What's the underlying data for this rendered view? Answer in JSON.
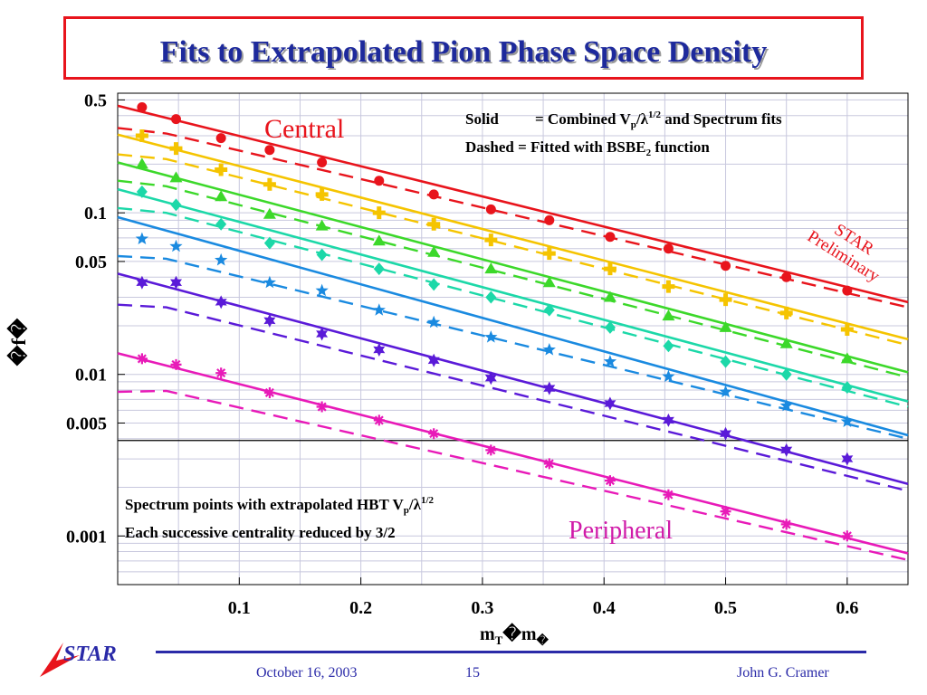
{
  "slide": {
    "title": "Fits to Extrapolated Pion Phase Space Density",
    "footer": {
      "date": "October 16, 2003",
      "page": "15",
      "author": "John G. Cramer",
      "logo_text": "STAR"
    }
  },
  "chart_data": {
    "type": "scatter",
    "xlabel": "m T �m �",
    "xlabel_main": "m",
    "xlabel_sub": "T",
    "xlabel_mid": "�m",
    "xlabel_end": "�",
    "ylabel": "�f�",
    "xlim": [
      0.0,
      0.65
    ],
    "ylim": [
      0.0005,
      0.55
    ],
    "yscale": "log",
    "grid": true,
    "x_ticks": [
      {
        "v": 0.1,
        "label": "0.1"
      },
      {
        "v": 0.2,
        "label": "0.2"
      },
      {
        "v": 0.3,
        "label": "0.3"
      },
      {
        "v": 0.4,
        "label": "0.4"
      },
      {
        "v": 0.5,
        "label": "0.5"
      },
      {
        "v": 0.6,
        "label": "0.6"
      }
    ],
    "y_ticks": [
      {
        "v": 0.5,
        "label": "0.5"
      },
      {
        "v": 0.1,
        "label": "0.1"
      },
      {
        "v": 0.05,
        "label": "0.05"
      },
      {
        "v": 0.01,
        "label": "0.01"
      },
      {
        "v": 0.005,
        "label": "0.005"
      },
      {
        "v": 0.001,
        "label": "0.001"
      }
    ],
    "separator_y": 0.0039,
    "annotations": {
      "central": "Central",
      "peripheral": "Peripheral",
      "solid_prefix": "Solid",
      "solid_mid": "= Combined V",
      "solid_sub": "p",
      "solid_lambda": "/λ",
      "solid_sup": "1/2",
      "solid_suffix": " and Spectrum fits",
      "dashed_text": "Dashed = Fitted with BSBE",
      "dashed_sub": "2",
      "dashed_suffix": " function",
      "star_line1": "STAR",
      "star_line2": "Preliminary",
      "spectrum_line1_prefix": "Spectrum points with extrapolated HBT V",
      "spectrum_line1_sub": "p",
      "spectrum_line1_mid": "/λ",
      "spectrum_line1_sup": "1/2",
      "spectrum_line2": "Each successive centrality reduced by 3/2"
    },
    "series": [
      {
        "color": "#e8141c",
        "marker": "circle",
        "x": [
          0.02,
          0.048,
          0.085,
          0.125,
          0.168,
          0.215,
          0.26,
          0.307,
          0.355,
          0.405,
          0.453,
          0.5,
          0.55,
          0.6
        ],
        "y": [
          0.45,
          0.38,
          0.29,
          0.245,
          0.205,
          0.158,
          0.13,
          0.105,
          0.09,
          0.071,
          0.06,
          0.047,
          0.04,
          0.033
        ],
        "solid": [
          [
            0.0,
            0.46
          ],
          [
            0.65,
            0.028
          ]
        ],
        "dashed": [
          [
            0.0,
            0.335
          ],
          [
            0.04,
            0.31
          ],
          [
            0.65,
            0.026
          ]
        ]
      },
      {
        "color": "#f5c400",
        "marker": "plus",
        "x": [
          0.02,
          0.048,
          0.085,
          0.125,
          0.168,
          0.215,
          0.26,
          0.307,
          0.355,
          0.405,
          0.453,
          0.5,
          0.55,
          0.6
        ],
        "y": [
          0.3,
          0.25,
          0.185,
          0.15,
          0.13,
          0.1,
          0.085,
          0.068,
          0.056,
          0.045,
          0.035,
          0.029,
          0.024,
          0.019
        ],
        "solid": [
          [
            0.0,
            0.305
          ],
          [
            0.65,
            0.0165
          ]
        ],
        "dashed": [
          [
            0.0,
            0.23
          ],
          [
            0.04,
            0.215
          ],
          [
            0.65,
            0.0152
          ]
        ]
      },
      {
        "color": "#3cd82a",
        "marker": "triangle",
        "x": [
          0.02,
          0.048,
          0.085,
          0.125,
          0.168,
          0.215,
          0.26,
          0.307,
          0.355,
          0.405,
          0.453,
          0.5,
          0.55,
          0.6
        ],
        "y": [
          0.2,
          0.165,
          0.126,
          0.098,
          0.083,
          0.067,
          0.057,
          0.045,
          0.037,
          0.03,
          0.023,
          0.0195,
          0.0155,
          0.0125
        ],
        "solid": [
          [
            0.0,
            0.205
          ],
          [
            0.65,
            0.0103
          ]
        ],
        "dashed": [
          [
            0.0,
            0.158
          ],
          [
            0.04,
            0.146
          ],
          [
            0.65,
            0.0096
          ]
        ]
      },
      {
        "color": "#1cd8a8",
        "marker": "diamond",
        "x": [
          0.02,
          0.048,
          0.085,
          0.125,
          0.168,
          0.215,
          0.26,
          0.307,
          0.355,
          0.405,
          0.453,
          0.5,
          0.55,
          0.6
        ],
        "y": [
          0.135,
          0.112,
          0.085,
          0.065,
          0.055,
          0.045,
          0.036,
          0.03,
          0.025,
          0.0195,
          0.015,
          0.012,
          0.01,
          0.0083
        ],
        "solid": [
          [
            0.0,
            0.14
          ],
          [
            0.65,
            0.0068
          ]
        ],
        "dashed": [
          [
            0.0,
            0.107
          ],
          [
            0.04,
            0.1
          ],
          [
            0.65,
            0.0063
          ]
        ]
      },
      {
        "color": "#1a8ae0",
        "marker": "star",
        "x": [
          0.02,
          0.048,
          0.085,
          0.125,
          0.168,
          0.215,
          0.26,
          0.307,
          0.355,
          0.405,
          0.453,
          0.5,
          0.55,
          0.6
        ],
        "y": [
          0.069,
          0.062,
          0.051,
          0.037,
          0.033,
          0.025,
          0.021,
          0.017,
          0.0142,
          0.012,
          0.0097,
          0.0078,
          0.0064,
          0.0051
        ],
        "solid": [
          [
            0.0,
            0.094
          ],
          [
            0.65,
            0.0042
          ]
        ],
        "dashed": [
          [
            0.0,
            0.054
          ],
          [
            0.04,
            0.052
          ],
          [
            0.65,
            0.004
          ]
        ]
      },
      {
        "color": "#5a1ad8",
        "marker": "star6",
        "x": [
          0.02,
          0.048,
          0.085,
          0.125,
          0.168,
          0.215,
          0.26,
          0.307,
          0.355,
          0.405,
          0.453,
          0.5,
          0.55,
          0.6
        ],
        "y": [
          0.037,
          0.037,
          0.028,
          0.0215,
          0.0178,
          0.0142,
          0.0122,
          0.0095,
          0.0082,
          0.0066,
          0.0052,
          0.0043,
          0.0034,
          0.003
        ],
        "solid": [
          [
            0.0,
            0.042
          ],
          [
            0.65,
            0.0021
          ]
        ],
        "dashed": [
          [
            0.0,
            0.027
          ],
          [
            0.04,
            0.026
          ],
          [
            0.65,
            0.0019
          ]
        ]
      },
      {
        "color": "#e81ab8",
        "marker": "asterisk",
        "x": [
          0.02,
          0.048,
          0.085,
          0.125,
          0.168,
          0.215,
          0.26,
          0.307,
          0.355,
          0.405,
          0.453,
          0.5,
          0.55,
          0.6
        ],
        "y": [
          0.0125,
          0.0115,
          0.0102,
          0.0077,
          0.0063,
          0.0052,
          0.0043,
          0.0034,
          0.0028,
          0.0022,
          0.0018,
          0.00142,
          0.00118,
          0.001
        ],
        "solid": [
          [
            0.0,
            0.0135
          ],
          [
            0.65,
            0.00078
          ]
        ],
        "dashed": [
          [
            0.0,
            0.0078
          ],
          [
            0.04,
            0.0079
          ],
          [
            0.65,
            0.00071
          ]
        ]
      }
    ]
  }
}
